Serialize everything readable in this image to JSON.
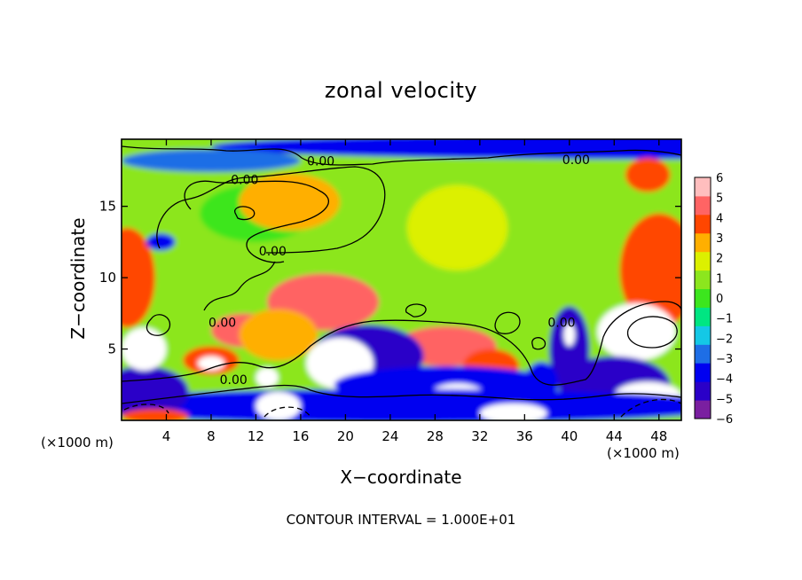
{
  "chart_data": {
    "type": "heatmap",
    "title": "zonal velocity",
    "xlabel": "X−coordinate",
    "ylabel": "Z−coordinate",
    "x_unit_left": "(×1000 m)",
    "x_unit_right": "(×1000 m)",
    "footnote": "CONTOUR INTERVAL = 1.000E+01",
    "xlim": [
      0,
      50
    ],
    "ylim": [
      0,
      19.7
    ],
    "x_ticks": [
      4,
      8,
      12,
      16,
      20,
      24,
      28,
      32,
      36,
      40,
      44,
      48
    ],
    "y_ticks": [
      5,
      10,
      15
    ],
    "colorbar": {
      "range": [
        -6,
        6
      ],
      "tick_values": [
        6,
        5,
        4,
        3,
        2,
        1,
        0,
        -1,
        -2,
        -3,
        -4,
        -5,
        -6
      ],
      "colors": [
        "#7a1fa0",
        "#2a00c8",
        "#0000f0",
        "#1e6ee6",
        "#14c8e6",
        "#00e682",
        "#3ce61e",
        "#8ce61e",
        "#dcf000",
        "#ffaf00",
        "#ff4600",
        "#ff6464",
        "#ffbebe"
      ]
    },
    "contour_labels": [
      {
        "text": "0.00",
        "x": 17.8,
        "z": 18.1
      },
      {
        "text": "0.00",
        "x": 40.6,
        "z": 18.2
      },
      {
        "text": "0.00",
        "x": 11.0,
        "z": 16.8
      },
      {
        "text": "0.00",
        "x": 13.5,
        "z": 11.8
      },
      {
        "text": "0.00",
        "x": 9.0,
        "z": 6.8
      },
      {
        "text": "0.00",
        "x": 10.0,
        "z": 2.8
      },
      {
        "text": "0.00",
        "x": 39.3,
        "z": 6.8
      }
    ],
    "field_blobs": [
      {
        "x": 25,
        "z": 10.5,
        "rx": 30,
        "rz": 11,
        "v": 0.8
      },
      {
        "x": 30,
        "z": 13.5,
        "rx": 4.5,
        "rz": 3,
        "v": 2
      },
      {
        "x": 12,
        "z": 14.5,
        "rx": 5,
        "rz": 2,
        "v": 0.4
      },
      {
        "x": 15,
        "z": 15.3,
        "rx": 4.5,
        "rz": 2,
        "v": 2.6
      },
      {
        "x": 48,
        "z": 19.2,
        "rx": 40,
        "rz": 0.9,
        "v": -4
      },
      {
        "x": 8,
        "z": 18.2,
        "rx": 8,
        "rz": 0.8,
        "v": -3
      },
      {
        "x": 47,
        "z": 17.2,
        "rx": 2,
        "rz": 1.2,
        "v": 3.5
      },
      {
        "x": 0.5,
        "z": 10,
        "rx": 2.5,
        "rz": 3.5,
        "v": 4
      },
      {
        "x": 48,
        "z": 10.5,
        "rx": 3.5,
        "rz": 4,
        "v": 4
      },
      {
        "x": 46,
        "z": 6.2,
        "rx": 3.5,
        "rz": 2,
        "v": 7
      },
      {
        "x": 18,
        "z": 8.3,
        "rx": 5,
        "rz": 2,
        "v": 4.5
      },
      {
        "x": 11,
        "z": 6.3,
        "rx": 3,
        "rz": 1.2,
        "v": 4.5
      },
      {
        "x": 14,
        "z": 6.0,
        "rx": 3.5,
        "rz": 1.8,
        "v": 3
      },
      {
        "x": 29,
        "z": 5.2,
        "rx": 4.5,
        "rz": 1.4,
        "v": 4.5
      },
      {
        "x": 33,
        "z": 3.8,
        "rx": 2.5,
        "rz": 1.2,
        "v": 4
      },
      {
        "x": 22,
        "z": 4.5,
        "rx": 5,
        "rz": 2.2,
        "v": -5
      },
      {
        "x": 19.5,
        "z": 4.0,
        "rx": 3,
        "rz": 1.8,
        "v": -8
      },
      {
        "x": 29,
        "z": 2.5,
        "rx": 10,
        "rz": 1.3,
        "v": -4
      },
      {
        "x": 30,
        "z": 1.7,
        "rx": 2.5,
        "rz": 0.9,
        "v": -8
      },
      {
        "x": 8,
        "z": 4.2,
        "rx": 2.5,
        "rz": 1,
        "v": 4
      },
      {
        "x": 8,
        "z": 4.0,
        "rx": 1.2,
        "rz": 0.5,
        "v": 7
      },
      {
        "x": 13,
        "z": 3.0,
        "rx": 1,
        "rz": 0.7,
        "v": 6.5
      },
      {
        "x": 40,
        "z": 5,
        "rx": 1.8,
        "rz": 3,
        "v": -5
      },
      {
        "x": 40,
        "z": 6,
        "rx": 0.5,
        "rz": 0.8,
        "v": -8
      },
      {
        "x": 37.5,
        "z": 2.6,
        "rx": 1.5,
        "rz": 1.5,
        "v": -4
      },
      {
        "x": 44,
        "z": 2.5,
        "rx": 5,
        "rz": 2,
        "v": -5
      },
      {
        "x": 47,
        "z": 1.7,
        "rx": 3,
        "rz": 1,
        "v": -8
      },
      {
        "x": 25,
        "z": 1.0,
        "rx": 30,
        "rz": 1.2,
        "v": -4
      },
      {
        "x": 2,
        "z": 2.0,
        "rx": 4,
        "rz": 1.8,
        "v": -5
      },
      {
        "x": 2,
        "z": 5,
        "rx": 2,
        "rz": 1.5,
        "v": -8
      },
      {
        "x": 3,
        "z": 0.3,
        "rx": 3,
        "rz": 0.5,
        "v": 4
      },
      {
        "x": 14,
        "z": 1,
        "rx": 2,
        "rz": 1,
        "v": -8
      },
      {
        "x": 35,
        "z": 0.5,
        "rx": 3,
        "rz": 0.7,
        "v": -8
      },
      {
        "x": 3.5,
        "z": 12.5,
        "rx": 1.3,
        "rz": 0.6,
        "v": -4
      }
    ]
  }
}
